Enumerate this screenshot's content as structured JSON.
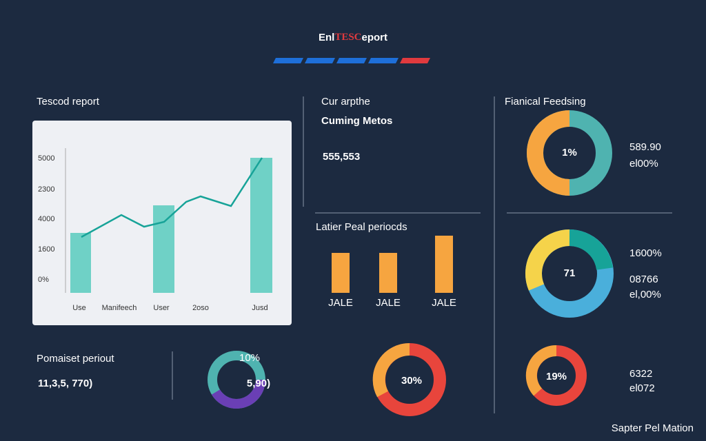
{
  "header": {
    "title_parts": [
      "Enl",
      "TESC",
      "eport"
    ]
  },
  "report_panel": {
    "title": "Tescod report",
    "y_labels": [
      "5000",
      "2300",
      "4000",
      "1600",
      "0%"
    ],
    "x_labels": [
      "Use",
      "Manifeech",
      "User",
      "2oso",
      "Jusd"
    ]
  },
  "metric_panel": {
    "eyebrow": "Cur arpthe",
    "subtitle": "Cuming Metos",
    "value": "555,553"
  },
  "periods_panel": {
    "title": "Latier Peal periocds",
    "bar_labels": [
      "JALE",
      "JALE",
      "JALE"
    ]
  },
  "feed_panel": {
    "title": "Fianical Feedsing",
    "donut_center": "1%",
    "legend": [
      "589.90",
      "el00%"
    ]
  },
  "donut_panel": {
    "donut_center": "71",
    "legend": [
      "1600%",
      "08766",
      "el,00%"
    ]
  },
  "bottom": {
    "title": "Pomaiset periout",
    "value": "11,3,5, 770)",
    "donut_top": "10%",
    "donut_value": "5,90)",
    "donut2_center": "30%",
    "donut3_center": "19%",
    "legend": [
      "6322",
      "el072"
    ]
  },
  "footer": {
    "text": "Sapter Pel Mation"
  }
}
